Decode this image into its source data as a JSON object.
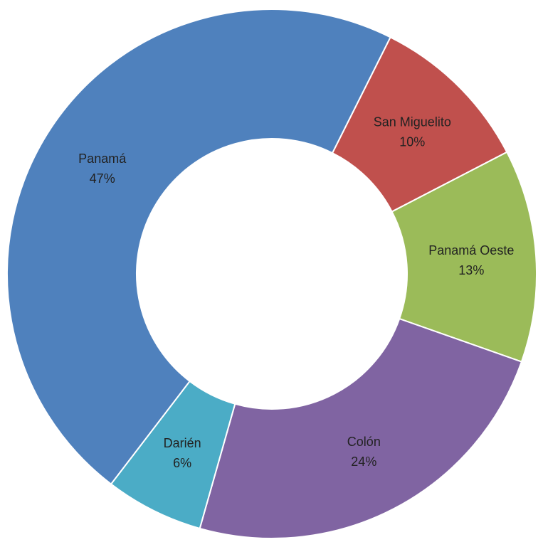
{
  "chart_data": {
    "type": "donut",
    "categories": [
      "San Miguelito",
      "Panamá Oeste",
      "Colón",
      "Darién",
      "Panamá"
    ],
    "values": [
      10,
      13,
      24,
      6,
      47
    ],
    "value_labels": [
      "10%",
      "13%",
      "24%",
      "6%",
      "47%"
    ],
    "colors": [
      "#c0504d",
      "#9bbb59",
      "#8064a2",
      "#4bacc6",
      "#4f81bd"
    ]
  }
}
